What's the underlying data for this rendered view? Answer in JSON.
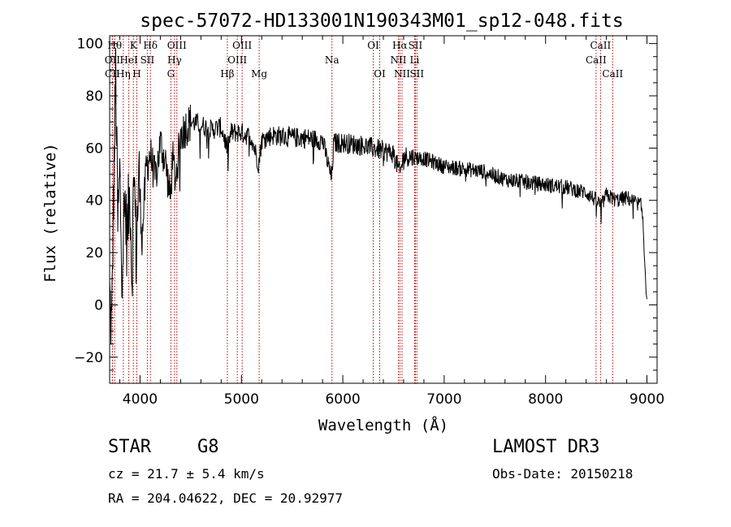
{
  "chart_data": {
    "type": "line",
    "title": "spec-57072-HD133001N190343M01_sp12-048.fits",
    "xlabel": "Wavelength (Å)",
    "ylabel": "Flux (relative)",
    "xlim": [
      3700,
      9100
    ],
    "ylim": [
      -30,
      103
    ],
    "xticks": [
      4000,
      5000,
      6000,
      7000,
      8000,
      9000
    ],
    "yticks": [
      -20,
      0,
      20,
      40,
      60,
      80,
      100
    ],
    "spectrum_anchors": [
      [
        3700,
        4
      ],
      [
        3720,
        -10
      ],
      [
        3740,
        45
      ],
      [
        3760,
        88
      ],
      [
        3780,
        30
      ],
      [
        3800,
        50
      ],
      [
        3820,
        15
      ],
      [
        3850,
        40
      ],
      [
        3870,
        25
      ],
      [
        3900,
        45
      ],
      [
        3920,
        10
      ],
      [
        3940,
        55
      ],
      [
        3960,
        20
      ],
      [
        3990,
        50
      ],
      [
        4020,
        25
      ],
      [
        4060,
        52
      ],
      [
        4100,
        58
      ],
      [
        4150,
        48
      ],
      [
        4200,
        62
      ],
      [
        4250,
        55
      ],
      [
        4300,
        40
      ],
      [
        4320,
        56
      ],
      [
        4350,
        48
      ],
      [
        4400,
        65
      ],
      [
        4450,
        68
      ],
      [
        4500,
        70
      ],
      [
        4600,
        69
      ],
      [
        4700,
        67
      ],
      [
        4800,
        68
      ],
      [
        4860,
        60
      ],
      [
        4900,
        66
      ],
      [
        5000,
        66
      ],
      [
        5100,
        64
      ],
      [
        5170,
        54
      ],
      [
        5200,
        63
      ],
      [
        5300,
        65
      ],
      [
        5500,
        64
      ],
      [
        5600,
        64
      ],
      [
        5800,
        63
      ],
      [
        5890,
        48
      ],
      [
        5910,
        62
      ],
      [
        6000,
        62
      ],
      [
        6200,
        61
      ],
      [
        6300,
        60
      ],
      [
        6400,
        59
      ],
      [
        6500,
        58
      ],
      [
        6563,
        50
      ],
      [
        6600,
        57
      ],
      [
        6800,
        56
      ],
      [
        7000,
        53
      ],
      [
        7200,
        52
      ],
      [
        7400,
        51
      ],
      [
        7600,
        48
      ],
      [
        7800,
        47
      ],
      [
        8000,
        46
      ],
      [
        8200,
        45
      ],
      [
        8400,
        43
      ],
      [
        8500,
        40
      ],
      [
        8550,
        38
      ],
      [
        8600,
        42
      ],
      [
        8700,
        40
      ],
      [
        8800,
        41
      ],
      [
        8900,
        39
      ],
      [
        8940,
        38
      ],
      [
        8960,
        33
      ],
      [
        8980,
        15
      ],
      [
        9000,
        2
      ]
    ],
    "spectral_lines": [
      {
        "label": "CII",
        "wavelength": 3727,
        "row": 2
      },
      {
        "label": "OII",
        "wavelength": 3727,
        "row": 1
      },
      {
        "label": "Hθ",
        "wavelength": 3750,
        "row": 0
      },
      {
        "label": "Hη",
        "wavelength": 3835,
        "row": 2
      },
      {
        "label": "HeI",
        "wavelength": 3889,
        "row": 1
      },
      {
        "label": "K",
        "wavelength": 3934,
        "row": 0
      },
      {
        "label": "H",
        "wavelength": 3968,
        "row": 2
      },
      {
        "label": "SII",
        "wavelength": 4072,
        "row": 1
      },
      {
        "label": "Hδ",
        "wavelength": 4102,
        "row": 0
      },
      {
        "label": "G",
        "wavelength": 4304,
        "row": 2
      },
      {
        "label": "Hγ",
        "wavelength": 4340,
        "row": 1
      },
      {
        "label": "OIII",
        "wavelength": 4363,
        "row": 0
      },
      {
        "label": "Hβ",
        "wavelength": 4861,
        "row": 2
      },
      {
        "label": "OIII",
        "wavelength": 4959,
        "row": 1
      },
      {
        "label": "OIII",
        "wavelength": 5007,
        "row": 0
      },
      {
        "label": "Mg",
        "wavelength": 5175,
        "row": 2
      },
      {
        "label": "Na",
        "wavelength": 5893,
        "row": 1
      },
      {
        "label": "OI",
        "wavelength": 6300,
        "row": 0
      },
      {
        "label": "OI",
        "wavelength": 6364,
        "row": 2
      },
      {
        "label": "NII",
        "wavelength": 6548,
        "row": 1
      },
      {
        "label": "Hα",
        "wavelength": 6563,
        "row": 0
      },
      {
        "label": "NII",
        "wavelength": 6584,
        "row": 2
      },
      {
        "label": "Li",
        "wavelength": 6708,
        "row": 1
      },
      {
        "label": "SII",
        "wavelength": 6716,
        "row": 0
      },
      {
        "label": "SII",
        "wavelength": 6731,
        "row": 2
      },
      {
        "label": "CaII",
        "wavelength": 8498,
        "row": 1
      },
      {
        "label": "CaII",
        "wavelength": 8542,
        "row": 0
      },
      {
        "label": "CaII",
        "wavelength": 8662,
        "row": 2
      }
    ]
  },
  "info": {
    "object_type": "STAR",
    "subclass": "G8",
    "survey": "LAMOST DR3",
    "cz": "cz = 21.7 ± 5.4 km/s",
    "obs_date": "Obs-Date: 20150218",
    "coords": "RA = 204.04622, DEC =  20.92977"
  },
  "colors": {
    "spectrum": "#000000",
    "line_markers": "#c00000",
    "axes": "#000000"
  }
}
